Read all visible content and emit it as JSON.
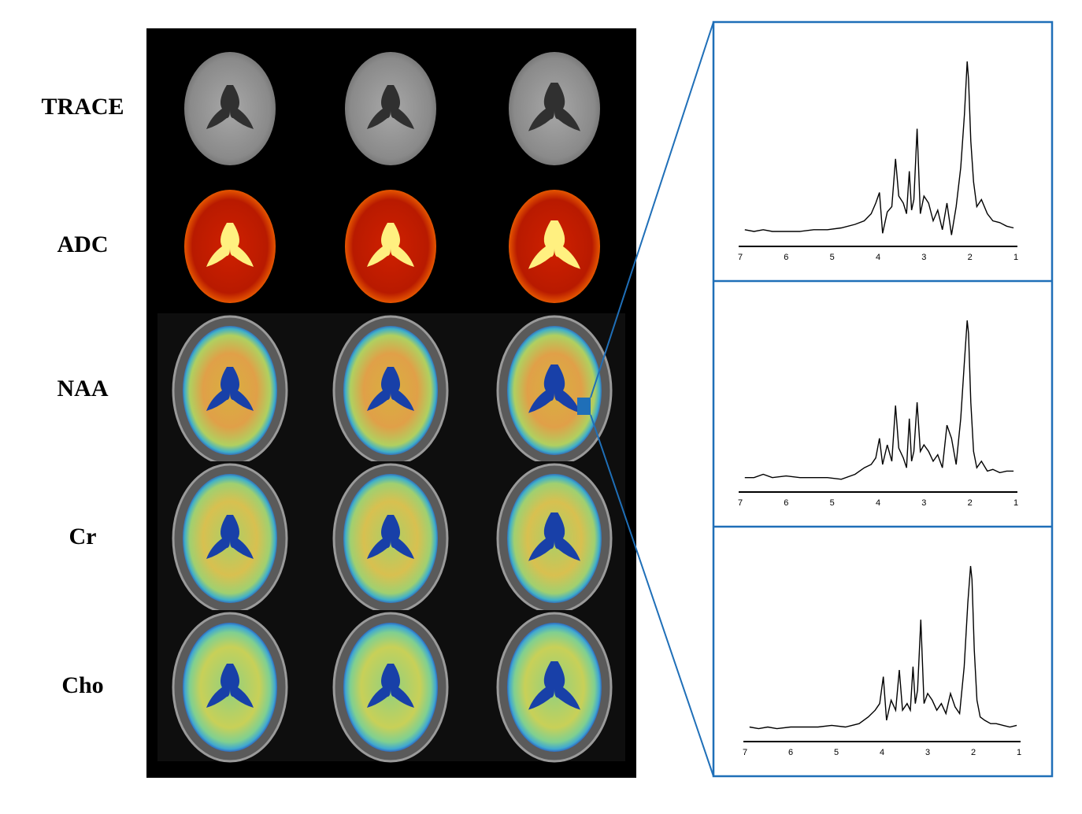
{
  "row_labels": [
    "TRACE",
    "ADC",
    "NAA",
    "Cr",
    "Cho"
  ],
  "chart_data": [
    {
      "type": "line",
      "color": "#000000",
      "xlim": [
        7,
        1
      ],
      "ylim": [
        0,
        100
      ],
      "xticks": [
        7,
        6,
        5,
        4,
        3,
        2,
        1
      ],
      "x": [
        6.9,
        6.7,
        6.5,
        6.3,
        6.0,
        5.7,
        5.4,
        5.1,
        4.8,
        4.5,
        4.3,
        4.15,
        4.05,
        3.97,
        3.9,
        3.8,
        3.7,
        3.62,
        3.55,
        3.45,
        3.38,
        3.32,
        3.27,
        3.22,
        3.15,
        3.08,
        3.0,
        2.9,
        2.8,
        2.7,
        2.6,
        2.5,
        2.4,
        2.3,
        2.2,
        2.12,
        2.06,
        2.03,
        1.98,
        1.92,
        1.85,
        1.75,
        1.62,
        1.5,
        1.35,
        1.2,
        1.05
      ],
      "values": [
        5,
        4,
        5,
        4,
        4,
        4,
        5,
        5,
        6,
        8,
        10,
        14,
        20,
        26,
        3,
        15,
        18,
        45,
        24,
        20,
        14,
        38,
        16,
        22,
        62,
        14,
        24,
        20,
        10,
        16,
        5,
        20,
        2,
        18,
        40,
        70,
        100,
        90,
        55,
        32,
        18,
        22,
        14,
        10,
        9,
        7,
        6
      ]
    },
    {
      "type": "line",
      "color": "#000000",
      "xlim": [
        7,
        1
      ],
      "ylim": [
        0,
        100
      ],
      "xticks": [
        7,
        6,
        5,
        4,
        3,
        2,
        1
      ],
      "x": [
        6.9,
        6.7,
        6.5,
        6.3,
        6.0,
        5.7,
        5.4,
        5.1,
        4.8,
        4.5,
        4.3,
        4.15,
        4.05,
        3.97,
        3.9,
        3.8,
        3.7,
        3.62,
        3.55,
        3.45,
        3.38,
        3.32,
        3.27,
        3.22,
        3.15,
        3.08,
        3.0,
        2.9,
        2.8,
        2.7,
        2.6,
        2.5,
        2.4,
        2.3,
        2.2,
        2.12,
        2.06,
        2.03,
        1.98,
        1.92,
        1.85,
        1.75,
        1.62,
        1.5,
        1.35,
        1.2,
        1.05
      ],
      "values": [
        4,
        4,
        6,
        4,
        5,
        4,
        4,
        4,
        3,
        6,
        10,
        12,
        16,
        28,
        12,
        24,
        14,
        48,
        22,
        16,
        10,
        40,
        14,
        20,
        50,
        20,
        24,
        20,
        14,
        18,
        10,
        36,
        28,
        12,
        40,
        75,
        100,
        92,
        50,
        20,
        10,
        14,
        8,
        9,
        7,
        8,
        8
      ]
    },
    {
      "type": "line",
      "color": "#000000",
      "xlim": [
        7,
        1
      ],
      "ylim": [
        0,
        100
      ],
      "xticks": [
        7,
        6,
        5,
        4,
        3,
        2,
        1
      ],
      "x": [
        6.9,
        6.7,
        6.5,
        6.3,
        6.0,
        5.7,
        5.4,
        5.1,
        4.8,
        4.5,
        4.3,
        4.15,
        4.05,
        3.97,
        3.9,
        3.8,
        3.7,
        3.62,
        3.55,
        3.45,
        3.38,
        3.32,
        3.27,
        3.22,
        3.15,
        3.08,
        3.0,
        2.9,
        2.8,
        2.7,
        2.6,
        2.5,
        2.4,
        2.3,
        2.2,
        2.12,
        2.06,
        2.03,
        1.98,
        1.92,
        1.85,
        1.75,
        1.62,
        1.5,
        1.35,
        1.2,
        1.05
      ],
      "values": [
        4,
        3,
        4,
        3,
        4,
        4,
        4,
        5,
        4,
        6,
        10,
        14,
        18,
        34,
        8,
        20,
        14,
        38,
        14,
        18,
        14,
        40,
        18,
        26,
        68,
        18,
        24,
        20,
        14,
        18,
        12,
        24,
        16,
        12,
        40,
        78,
        100,
        92,
        50,
        20,
        10,
        8,
        6,
        6,
        5,
        4,
        5
      ]
    }
  ]
}
